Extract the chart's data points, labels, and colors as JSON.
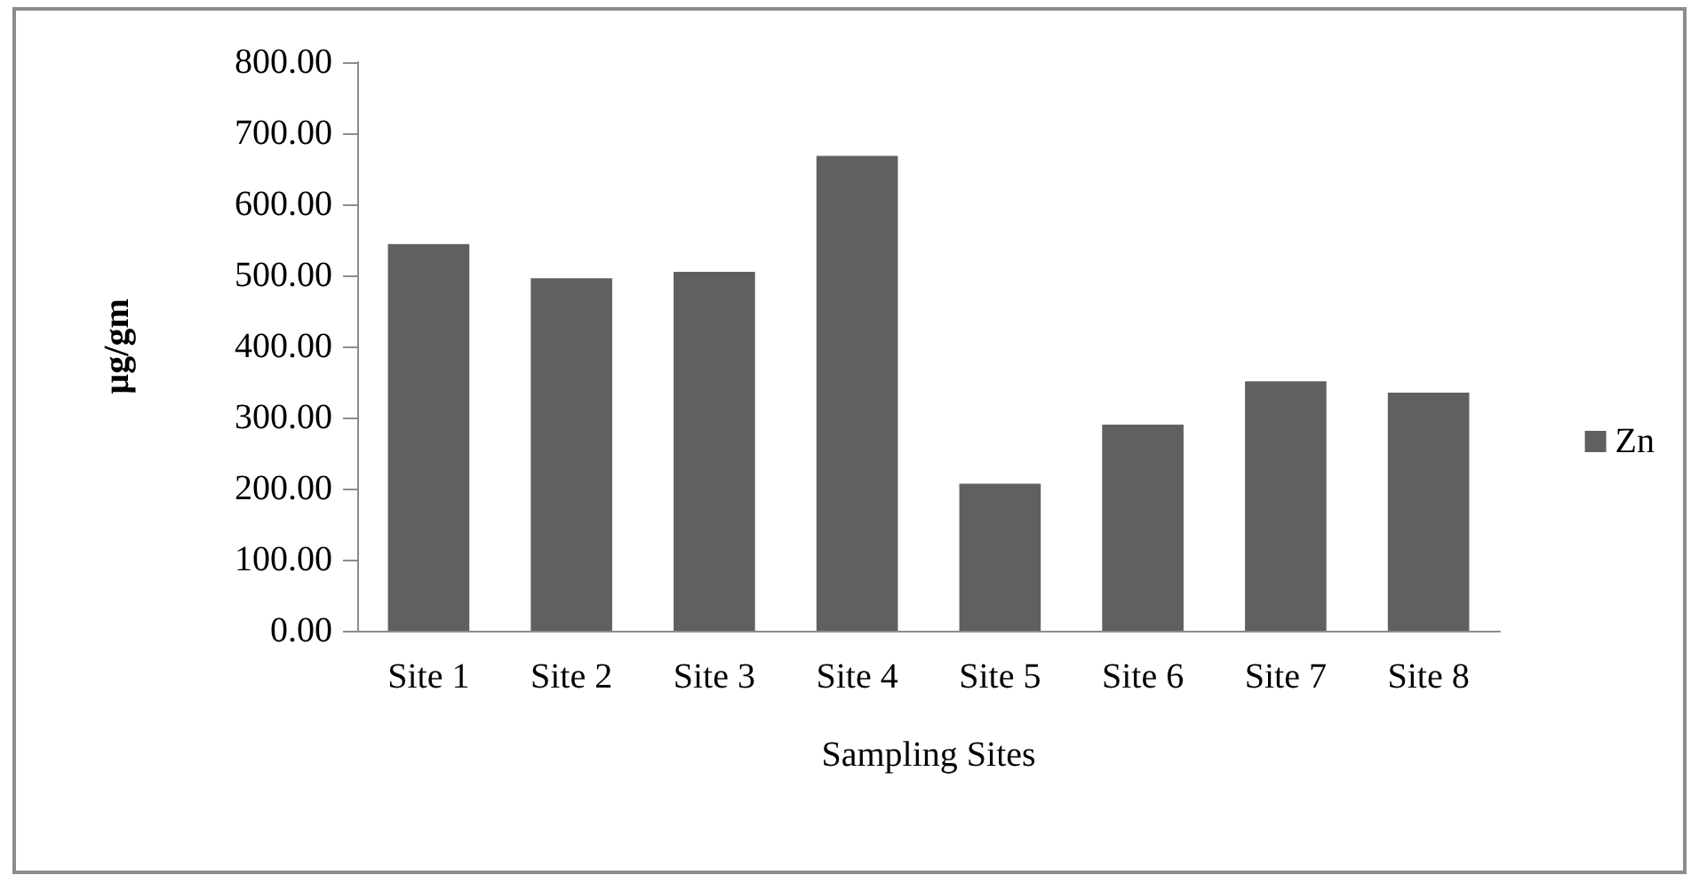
{
  "chart_data": {
    "type": "bar",
    "xlabel": "Sampling Sites",
    "ylabel": "µg/gm",
    "categories": [
      "Site 1",
      "Site 2",
      "Site 3",
      "Site 4",
      "Site 5",
      "Site 6",
      "Site 7",
      "Site 8"
    ],
    "series": [
      {
        "name": "Zn",
        "color": "#606060",
        "values": [
          544,
          496,
          505,
          668,
          207,
          290,
          351,
          335
        ]
      }
    ],
    "ylim": [
      0,
      800
    ],
    "yticks": [
      {
        "value": 0,
        "label": "0.00"
      },
      {
        "value": 100,
        "label": "100.00"
      },
      {
        "value": 200,
        "label": "200.00"
      },
      {
        "value": 300,
        "label": "300.00"
      },
      {
        "value": 400,
        "label": "400.00"
      },
      {
        "value": 500,
        "label": "500.00"
      },
      {
        "value": 600,
        "label": "600.00"
      },
      {
        "value": 700,
        "label": "700.00"
      },
      {
        "value": 800,
        "label": "800.00"
      }
    ],
    "grid": false,
    "legend": "right"
  }
}
